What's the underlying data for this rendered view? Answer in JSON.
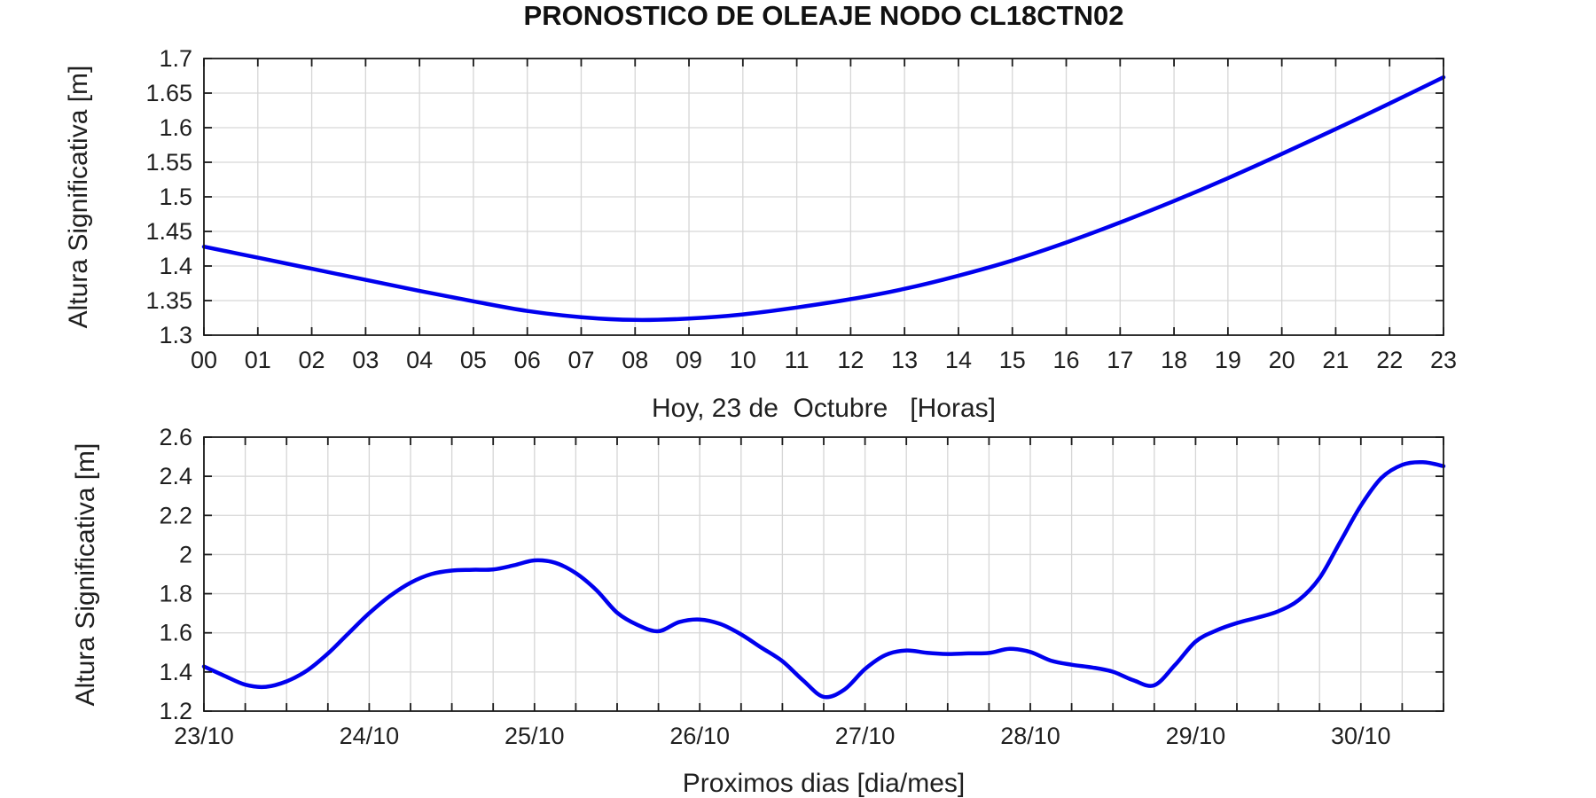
{
  "colors": {
    "line": "#0000ee",
    "grid": "#d6d6d6",
    "axis": "#1a1a1a",
    "text": "#1f1f1f",
    "background": "#ffffff"
  },
  "chart_data": [
    {
      "type": "line",
      "title": "PRONOSTICO DE OLEAJE NODO CL18CTN02",
      "xlabel": "Hoy, 23 de  Octubre   [Horas]",
      "ylabel": "Altura Significativa [m]",
      "legend": null,
      "grid": true,
      "xlim": [
        0,
        23
      ],
      "ylim": [
        1.3,
        1.7
      ],
      "x_grid": [
        0,
        1,
        2,
        3,
        4,
        5,
        6,
        7,
        8,
        9,
        10,
        11,
        12,
        13,
        14,
        15,
        16,
        17,
        18,
        19,
        20,
        21,
        22,
        23
      ],
      "x_ticks": {
        "positions": [
          0,
          1,
          2,
          3,
          4,
          5,
          6,
          7,
          8,
          9,
          10,
          11,
          12,
          13,
          14,
          15,
          16,
          17,
          18,
          19,
          20,
          21,
          22,
          23
        ],
        "labels": [
          "00",
          "01",
          "02",
          "03",
          "04",
          "05",
          "06",
          "07",
          "08",
          "09",
          "10",
          "11",
          "12",
          "13",
          "14",
          "15",
          "16",
          "17",
          "18",
          "19",
          "20",
          "21",
          "22",
          "23"
        ]
      },
      "y_ticks": {
        "positions": [
          1.3,
          1.35,
          1.4,
          1.45,
          1.5,
          1.55,
          1.6,
          1.65,
          1.7
        ],
        "labels": [
          "1.3",
          "1.35",
          "1.4",
          "1.45",
          "1.5",
          "1.55",
          "1.6",
          "1.65",
          "1.7"
        ]
      },
      "x": [
        0,
        1,
        2,
        3,
        4,
        5,
        6,
        7,
        8,
        9,
        10,
        11,
        12,
        13,
        14,
        15,
        16,
        17,
        18,
        19,
        20,
        21,
        22,
        23
      ],
      "values": [
        1.428,
        1.412,
        1.396,
        1.38,
        1.364,
        1.349,
        1.335,
        1.326,
        1.322,
        1.324,
        1.33,
        1.34,
        1.352,
        1.367,
        1.386,
        1.408,
        1.434,
        1.463,
        1.494,
        1.527,
        1.562,
        1.598,
        1.635,
        1.673
      ],
      "line_color": "#0000ee"
    },
    {
      "type": "line",
      "title": "",
      "xlabel": "Proximos dias [dia/mes]",
      "ylabel": "Altura Significativa [m]",
      "legend": null,
      "grid": true,
      "xlim": [
        0,
        7.5
      ],
      "ylim": [
        1.2,
        2.6
      ],
      "x_grid": [
        0,
        0.25,
        0.5,
        0.75,
        1,
        1.25,
        1.5,
        1.75,
        2,
        2.25,
        2.5,
        2.75,
        3,
        3.25,
        3.5,
        3.75,
        4,
        4.25,
        4.5,
        4.75,
        5,
        5.25,
        5.5,
        5.75,
        6,
        6.25,
        6.5,
        6.75,
        7,
        7.25,
        7.5
      ],
      "x_ticks": {
        "positions": [
          0,
          1,
          2,
          3,
          4,
          5,
          6,
          7
        ],
        "labels": [
          "23/10",
          "24/10",
          "25/10",
          "26/10",
          "27/10",
          "28/10",
          "29/10",
          "30/10"
        ]
      },
      "y_ticks": {
        "positions": [
          1.2,
          1.4,
          1.6,
          1.8,
          2.0,
          2.2,
          2.4,
          2.6
        ],
        "labels": [
          "1.2",
          "1.4",
          "1.6",
          "1.8",
          "2",
          "2.2",
          "2.4",
          "2.6"
        ]
      },
      "x": [
        0,
        0.125,
        0.25,
        0.375,
        0.5,
        0.625,
        0.75,
        0.875,
        1,
        1.125,
        1.25,
        1.375,
        1.5,
        1.625,
        1.75,
        1.875,
        2,
        2.125,
        2.25,
        2.375,
        2.5,
        2.625,
        2.75,
        2.875,
        3,
        3.125,
        3.25,
        3.375,
        3.5,
        3.625,
        3.75,
        3.875,
        4,
        4.125,
        4.25,
        4.375,
        4.5,
        4.625,
        4.75,
        4.875,
        5,
        5.125,
        5.25,
        5.375,
        5.5,
        5.625,
        5.75,
        5.875,
        6,
        6.125,
        6.25,
        6.375,
        6.5,
        6.625,
        6.75,
        6.875,
        7,
        7.125,
        7.25,
        7.375,
        7.5
      ],
      "values": [
        1.428,
        1.38,
        1.335,
        1.324,
        1.352,
        1.408,
        1.494,
        1.598,
        1.7,
        1.788,
        1.856,
        1.9,
        1.918,
        1.922,
        1.924,
        1.945,
        1.97,
        1.958,
        1.905,
        1.818,
        1.703,
        1.64,
        1.608,
        1.655,
        1.668,
        1.645,
        1.592,
        1.523,
        1.455,
        1.357,
        1.273,
        1.31,
        1.415,
        1.487,
        1.51,
        1.498,
        1.492,
        1.495,
        1.497,
        1.518,
        1.502,
        1.458,
        1.437,
        1.423,
        1.401,
        1.357,
        1.332,
        1.435,
        1.555,
        1.612,
        1.65,
        1.678,
        1.71,
        1.768,
        1.88,
        2.065,
        2.25,
        2.392,
        2.458,
        2.472,
        2.452
      ],
      "line_color": "#0000ee"
    }
  ]
}
